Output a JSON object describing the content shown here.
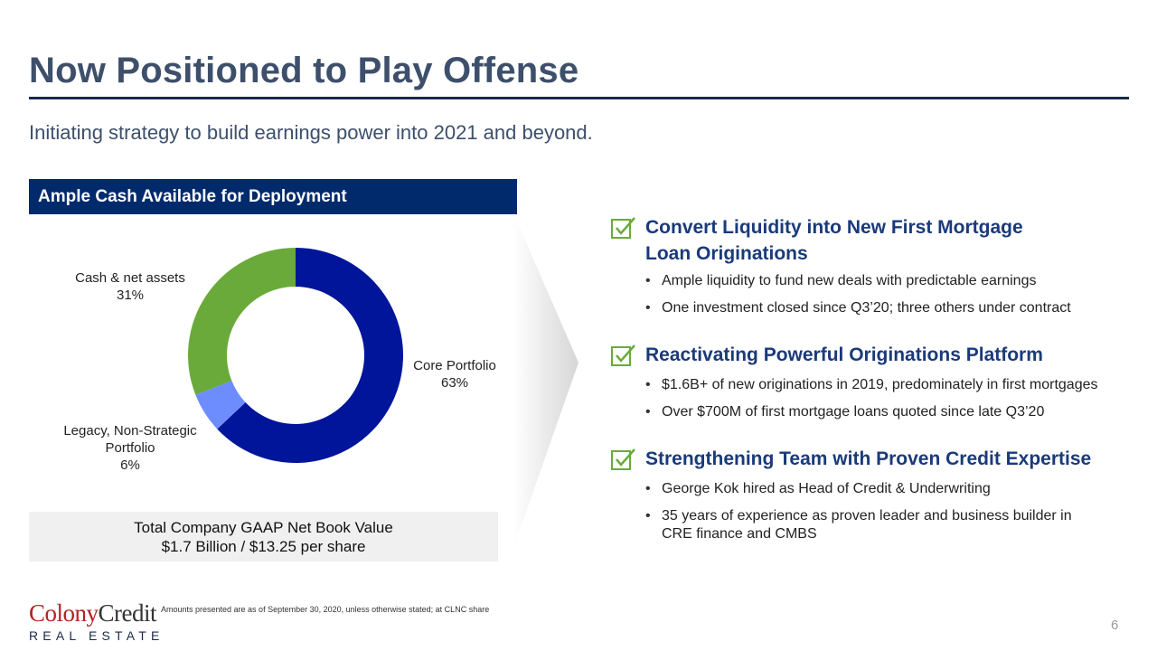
{
  "slide": {
    "title": "Now Positioned to Play Offense",
    "subtitle": "Initiating strategy to build earnings power into 2021 and beyond.",
    "section_header": "Ample Cash Available for Deployment",
    "nbv_line1": "Total Company GAAP Net Book Value",
    "nbv_line2": "$1.7 Billion / $13.25 per share",
    "footnote": "Amounts presented are as of September 30, 2020, unless otherwise stated; at CLNC share",
    "page_number": "6"
  },
  "chart_data": {
    "type": "pie",
    "subtype": "donut",
    "slices": [
      {
        "label": "Core Portfolio",
        "value": 63,
        "value_label": "63%",
        "color": "#00159a"
      },
      {
        "label": "Legacy, Non-Strategic Portfolio",
        "value": 6,
        "value_label": "6%",
        "color": "#6d8dff"
      },
      {
        "label": "Cash & net assets",
        "value": 31,
        "value_label": "31%",
        "color": "#6aaa3a"
      }
    ],
    "legend": "none"
  },
  "labels": {
    "legacy_line1": "Legacy, Non-Strategic",
    "legacy_line2": "Portfolio"
  },
  "points": [
    {
      "heading_line1": "Convert Liquidity into New First Mortgage",
      "heading_line2": "Loan Originations",
      "bullets": [
        "Ample liquidity to fund new deals with predictable earnings",
        "One investment closed since Q3’20; three others under contract"
      ]
    },
    {
      "heading": "Reactivating Powerful Originations Platform",
      "bullets": [
        "$1.6B+ of new originations in 2019, predominately in first mortgages",
        "Over $700M of first mortgage loans quoted since late Q3’20"
      ]
    },
    {
      "heading": "Strengthening Team with Proven Credit Expertise",
      "bullets": [
        "George Kok hired as Head of Credit & Underwriting",
        "35 years of experience as proven leader and business builder in",
        "CRE finance and CMBS"
      ]
    }
  ],
  "logo": {
    "word1": "Colony",
    "word2": "Credit",
    "line2": "REAL ESTATE"
  },
  "colors": {
    "title": "#3d4f6b",
    "navy": "#002a6c",
    "heading": "#1a3a7a",
    "check": "#6aaa3a"
  },
  "icons": {
    "check": "checkbox-check-icon"
  }
}
